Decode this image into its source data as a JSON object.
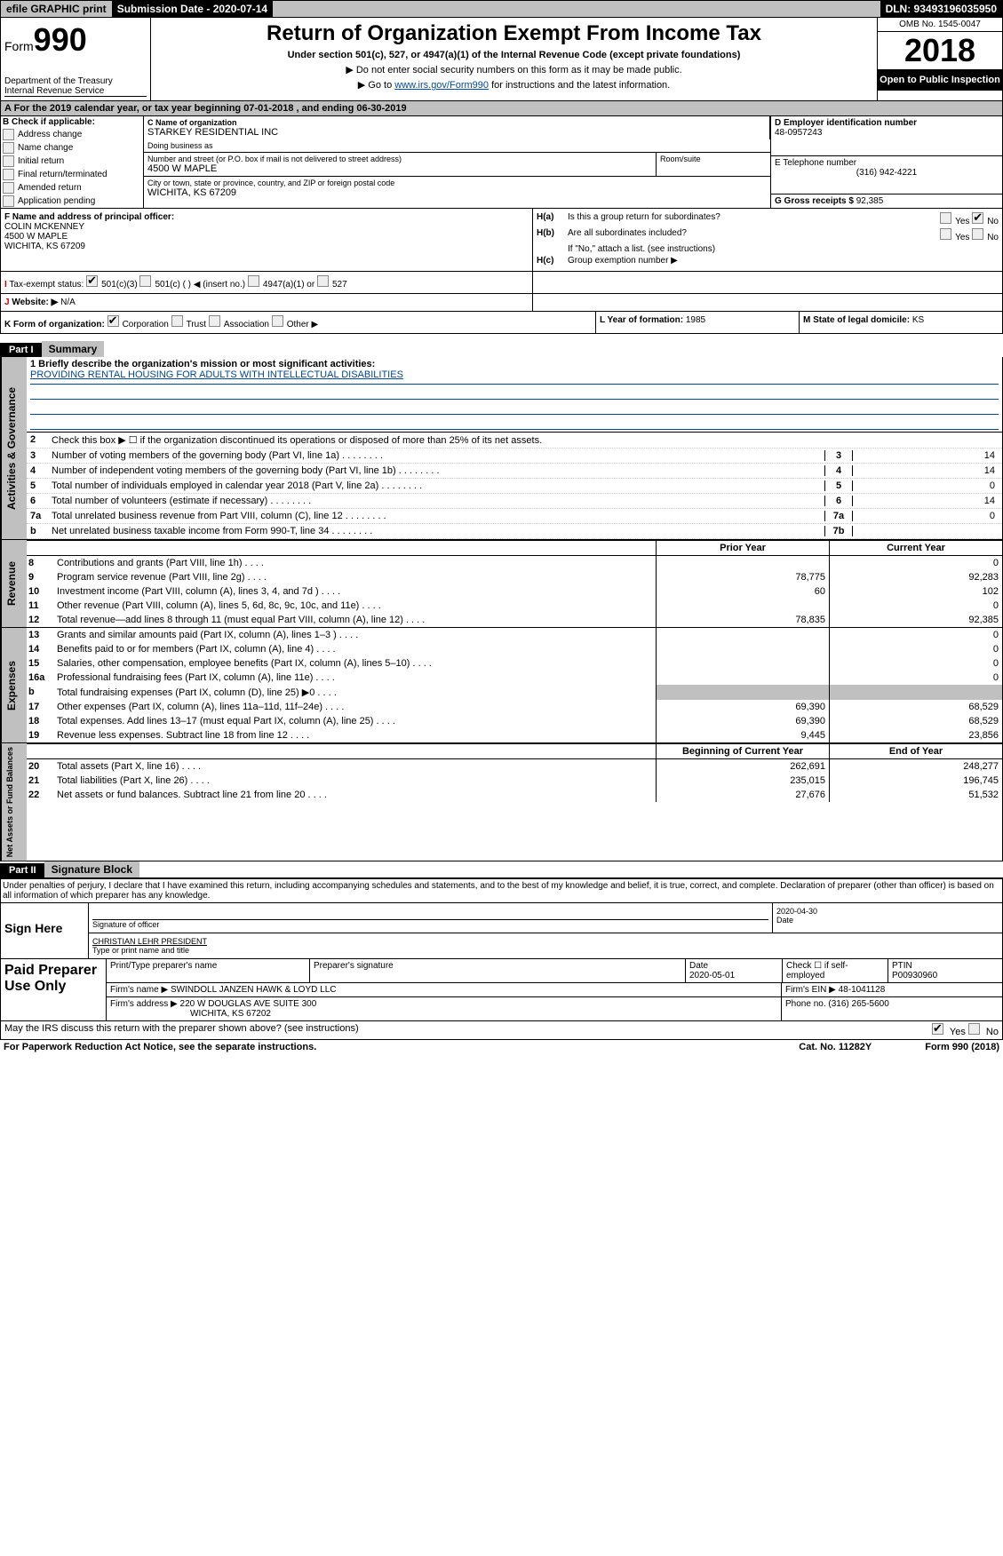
{
  "topbar": {
    "efile": "efile GRAPHIC print",
    "submission": "Submission Date - 2020-07-14",
    "dln": "DLN: 93493196035950"
  },
  "header": {
    "form_prefix": "Form",
    "form_num": "990",
    "dept": "Department of the Treasury",
    "irs": "Internal Revenue Service",
    "title": "Return of Organization Exempt From Income Tax",
    "subtitle": "Under section 501(c), 527, or 4947(a)(1) of the Internal Revenue Code (except private foundations)",
    "note1": "▶ Do not enter social security numbers on this form as it may be made public.",
    "note2_pre": "▶ Go to ",
    "note2_link": "www.irs.gov/Form990",
    "note2_post": " for instructions and the latest information.",
    "omb": "OMB No. 1545-0047",
    "year": "2018",
    "open": "Open to Public Inspection"
  },
  "row_a": "A   For the 2019 calendar year, or tax year beginning 07-01-2018     , and ending 06-30-2019",
  "col_b": {
    "label": "B Check if applicable:",
    "opts": [
      "Address change",
      "Name change",
      "Initial return",
      "Final return/terminated",
      "Amended return",
      "Application pending"
    ]
  },
  "col_c": {
    "name_label": "C Name of organization",
    "name": "STARKEY RESIDENTIAL INC",
    "dba_label": "Doing business as",
    "dba": "",
    "street_label": "Number and street (or P.O. box if mail is not delivered to street address)",
    "room_label": "Room/suite",
    "street": "4500 W MAPLE",
    "city_label": "City or town, state or province, country, and ZIP or foreign postal code",
    "city": "WICHITA, KS  67209"
  },
  "col_d": {
    "ein_label": "D Employer identification number",
    "ein": "48-0957243",
    "phone_label": "E Telephone number",
    "phone": "(316) 942-4221",
    "gross_label": "G Gross receipts $",
    "gross": "92,385"
  },
  "col_f": {
    "label": "F Name and address of principal officer:",
    "name": "COLIN MCKENNEY",
    "street": "4500 W MAPLE",
    "city": "WICHITA, KS  67209"
  },
  "col_h": {
    "ha": "Is this a group return for subordinates?",
    "hb": "Are all subordinates included?",
    "hb_note": "If \"No,\" attach a list. (see instructions)",
    "hc": "Group exemption number ▶"
  },
  "sec_i": {
    "label": "Tax-exempt status:",
    "opt1": "501(c)(3)",
    "opt2": "501(c) (   ) ◀ (insert no.)",
    "opt3": "4947(a)(1) or",
    "opt4": "527"
  },
  "sec_j": {
    "label": "J   Website: ▶",
    "val": "N/A"
  },
  "sec_k": "K Form of organization:",
  "k_opts": [
    "Corporation",
    "Trust",
    "Association",
    "Other ▶"
  ],
  "sec_l": {
    "label": "L Year of formation:",
    "val": "1985"
  },
  "sec_m": {
    "label": "M State of legal domicile:",
    "val": "KS"
  },
  "part1": {
    "header": "Part I",
    "title": "Summary",
    "mission_label": "1   Briefly describe the organization's mission or most significant activities:",
    "mission": "PROVIDING RENTAL HOUSING FOR ADULTS WITH INTELLECTUAL DISABILITIES",
    "line2": "Check this box ▶ ☐ if the organization discontinued its operations or disposed of more than 25% of its net assets."
  },
  "governance_lines": [
    {
      "n": "3",
      "d": "Number of voting members of the governing body (Part VI, line 1a)",
      "box": "3",
      "v": "14"
    },
    {
      "n": "4",
      "d": "Number of independent voting members of the governing body (Part VI, line 1b)",
      "box": "4",
      "v": "14"
    },
    {
      "n": "5",
      "d": "Total number of individuals employed in calendar year 2018 (Part V, line 2a)",
      "box": "5",
      "v": "0"
    },
    {
      "n": "6",
      "d": "Total number of volunteers (estimate if necessary)",
      "box": "6",
      "v": "14"
    },
    {
      "n": "7a",
      "d": "Total unrelated business revenue from Part VIII, column (C), line 12",
      "box": "7a",
      "v": "0"
    },
    {
      "n": "b",
      "d": "Net unrelated business taxable income from Form 990-T, line 34",
      "box": "7b",
      "v": ""
    }
  ],
  "col_headers": {
    "prior": "Prior Year",
    "current": "Current Year"
  },
  "revenue_lines": [
    {
      "n": "8",
      "d": "Contributions and grants (Part VIII, line 1h)",
      "p": "",
      "c": "0"
    },
    {
      "n": "9",
      "d": "Program service revenue (Part VIII, line 2g)",
      "p": "78,775",
      "c": "92,283"
    },
    {
      "n": "10",
      "d": "Investment income (Part VIII, column (A), lines 3, 4, and 7d )",
      "p": "60",
      "c": "102"
    },
    {
      "n": "11",
      "d": "Other revenue (Part VIII, column (A), lines 5, 6d, 8c, 9c, 10c, and 11e)",
      "p": "",
      "c": "0"
    },
    {
      "n": "12",
      "d": "Total revenue—add lines 8 through 11 (must equal Part VIII, column (A), line 12)",
      "p": "78,835",
      "c": "92,385"
    }
  ],
  "expense_lines": [
    {
      "n": "13",
      "d": "Grants and similar amounts paid (Part IX, column (A), lines 1–3 )",
      "p": "",
      "c": "0"
    },
    {
      "n": "14",
      "d": "Benefits paid to or for members (Part IX, column (A), line 4)",
      "p": "",
      "c": "0"
    },
    {
      "n": "15",
      "d": "Salaries, other compensation, employee benefits (Part IX, column (A), lines 5–10)",
      "p": "",
      "c": "0"
    },
    {
      "n": "16a",
      "d": "Professional fundraising fees (Part IX, column (A), line 11e)",
      "p": "",
      "c": "0"
    },
    {
      "n": "b",
      "d": "Total fundraising expenses (Part IX, column (D), line 25) ▶0",
      "p": "shaded",
      "c": "shaded"
    },
    {
      "n": "17",
      "d": "Other expenses (Part IX, column (A), lines 11a–11d, 11f–24e)",
      "p": "69,390",
      "c": "68,529"
    },
    {
      "n": "18",
      "d": "Total expenses. Add lines 13–17 (must equal Part IX, column (A), line 25)",
      "p": "69,390",
      "c": "68,529"
    },
    {
      "n": "19",
      "d": "Revenue less expenses. Subtract line 18 from line 12",
      "p": "9,445",
      "c": "23,856"
    }
  ],
  "balance_headers": {
    "beg": "Beginning of Current Year",
    "end": "End of Year"
  },
  "balance_lines": [
    {
      "n": "20",
      "d": "Total assets (Part X, line 16)",
      "p": "262,691",
      "c": "248,277"
    },
    {
      "n": "21",
      "d": "Total liabilities (Part X, line 26)",
      "p": "235,015",
      "c": "196,745"
    },
    {
      "n": "22",
      "d": "Net assets or fund balances. Subtract line 21 from line 20",
      "p": "27,676",
      "c": "51,532"
    }
  ],
  "part2": {
    "header": "Part II",
    "title": "Signature Block",
    "perjury": "Under penalties of perjury, I declare that I have examined this return, including accompanying schedules and statements, and to the best of my knowledge and belief, it is true, correct, and complete. Declaration of preparer (other than officer) is based on all information of which preparer has any knowledge."
  },
  "sign": {
    "label": "Sign Here",
    "sig_label": "Signature of officer",
    "date": "2020-04-30",
    "date_label": "Date",
    "name": "CHRISTIAN LEHR  PRESIDENT",
    "name_label": "Type or print name and title"
  },
  "paid": {
    "label": "Paid Preparer Use Only",
    "h1": "Print/Type preparer's name",
    "h2": "Preparer's signature",
    "h3": "Date",
    "date": "2020-05-01",
    "h4": "Check ☐ if self-employed",
    "h5": "PTIN",
    "ptin": "P00930960",
    "firm_name_label": "Firm's name    ▶",
    "firm_name": "SWINDOLL JANZEN HAWK & LOYD LLC",
    "firm_ein_label": "Firm's EIN ▶",
    "firm_ein": "48-1041128",
    "firm_addr_label": "Firm's address ▶",
    "firm_addr": "220 W DOUGLAS AVE SUITE 300",
    "firm_city": "WICHITA, KS  67202",
    "phone_label": "Phone no.",
    "phone": "(316) 265-5600"
  },
  "irs_discuss": "May the IRS discuss this return with the preparer shown above? (see instructions)",
  "footer": {
    "left": "For Paperwork Reduction Act Notice, see the separate instructions.",
    "mid": "Cat. No. 11282Y",
    "right": "Form 990 (2018)"
  },
  "side_labels": {
    "gov": "Activities & Governance",
    "rev": "Revenue",
    "exp": "Expenses",
    "bal": "Net Assets or Fund Balances"
  }
}
